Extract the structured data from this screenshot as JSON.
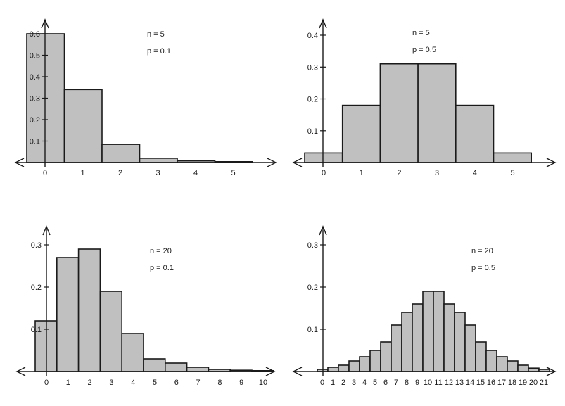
{
  "chart_data": [
    {
      "type": "bar",
      "categories": [
        "0",
        "1",
        "2",
        "3",
        "4",
        "5"
      ],
      "values": [
        0.6,
        0.34,
        0.085,
        0.02,
        0.008,
        0.004
      ],
      "ylim": [
        0,
        0.6
      ],
      "yticks": [
        "0.1",
        "0.2",
        "0.3",
        "0.4",
        "0.5",
        "0.6"
      ],
      "annotations": [
        "n = 5",
        "p = 0.1"
      ],
      "grid": false
    },
    {
      "type": "bar",
      "categories": [
        "0",
        "1",
        "2",
        "3",
        "4",
        "5"
      ],
      "values": [
        0.03,
        0.18,
        0.31,
        0.31,
        0.18,
        0.03
      ],
      "ylim": [
        0,
        0.4
      ],
      "yticks": [
        "0.1",
        "0.2",
        "0.3",
        "0.4"
      ],
      "annotations": [
        "n = 5",
        "p = 0.5"
      ],
      "grid": false
    },
    {
      "type": "bar",
      "categories": [
        "0",
        "1",
        "2",
        "3",
        "4",
        "5",
        "6",
        "7",
        "8",
        "9",
        "10"
      ],
      "values": [
        0.12,
        0.27,
        0.29,
        0.19,
        0.09,
        0.03,
        0.02,
        0.01,
        0.005,
        0.003,
        0.002
      ],
      "ylim": [
        0,
        0.3
      ],
      "yticks": [
        "0.1",
        "0.2",
        "0.3"
      ],
      "annotations": [
        "n = 20",
        "p = 0.1"
      ],
      "grid": false
    },
    {
      "type": "bar",
      "categories": [
        "0",
        "1",
        "2",
        "3",
        "4",
        "5",
        "6",
        "7",
        "8",
        "9",
        "10",
        "11",
        "12",
        "13",
        "14",
        "15",
        "16",
        "17",
        "18",
        "19",
        "20",
        "21"
      ],
      "values": [
        0.005,
        0.01,
        0.015,
        0.025,
        0.035,
        0.05,
        0.07,
        0.11,
        0.14,
        0.16,
        0.19,
        0.19,
        0.16,
        0.14,
        0.11,
        0.07,
        0.05,
        0.035,
        0.025,
        0.015,
        0.008,
        0.005
      ],
      "ylim": [
        0,
        0.3
      ],
      "yticks": [
        "0.1",
        "0.2",
        "0.3"
      ],
      "annotations": [
        "n = 20",
        "p = 0.5"
      ],
      "grid": false
    }
  ]
}
